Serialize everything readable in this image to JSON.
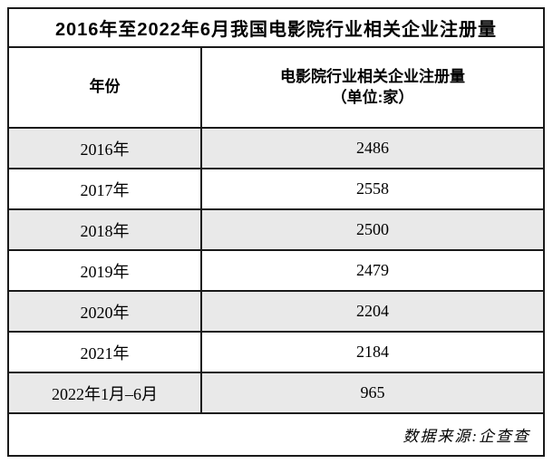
{
  "table": {
    "title": "2016年至2022年6月我国电影院行业相关企业注册量",
    "header": {
      "year_col": "年份",
      "value_col_line1": "电影院行业相关企业注册量",
      "value_col_line2": "（单位:家）"
    },
    "rows": [
      {
        "year": "2016年",
        "value": "2486"
      },
      {
        "year": "2017年",
        "value": "2558"
      },
      {
        "year": "2018年",
        "value": "2500"
      },
      {
        "year": "2019年",
        "value": "2479"
      },
      {
        "year": "2020年",
        "value": "2204"
      },
      {
        "year": "2021年",
        "value": "2184"
      },
      {
        "year": "2022年1月–6月",
        "value": "965"
      }
    ],
    "footer": {
      "source": "数据来源:企查查"
    }
  },
  "chart_data": {
    "type": "table",
    "title": "2016年至2022年6月我国电影院行业相关企业注册量",
    "columns": [
      "年份",
      "电影院行业相关企业注册量（单位:家）"
    ],
    "categories": [
      "2016年",
      "2017年",
      "2018年",
      "2019年",
      "2020年",
      "2021年",
      "2022年1月–6月"
    ],
    "values": [
      2486,
      2558,
      2500,
      2479,
      2204,
      2184,
      965
    ],
    "source": "数据来源:企查查"
  },
  "colors": {
    "stripe": "#e9e9e9",
    "border": "#1a1a1a",
    "text": "#000000"
  }
}
